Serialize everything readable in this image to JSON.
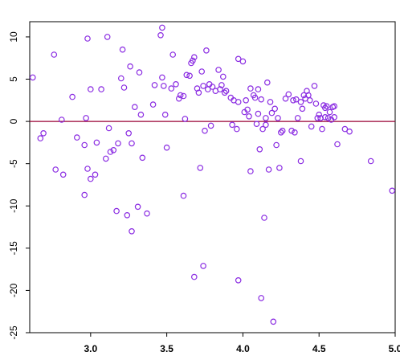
{
  "chart_data": {
    "type": "scatter",
    "title": "",
    "xlabel": "",
    "ylabel": "",
    "xlim": [
      2.6,
      5.0
    ],
    "ylim": [
      -25,
      11.8
    ],
    "x_ticks": [
      3.0,
      3.5,
      4.0,
      4.5,
      5.0
    ],
    "x_tick_labels": [
      "3.0",
      "3.5",
      "4.0",
      "4.5",
      "5.0"
    ],
    "y_ticks": [
      10,
      5,
      0,
      -5,
      -10,
      -15,
      -20,
      -25
    ],
    "y_tick_labels": [
      "10",
      "5",
      "0",
      "-5",
      "-10",
      "-15",
      "-20",
      "-25"
    ],
    "reference_line": {
      "y": 0,
      "color": "#990033"
    },
    "point_color": "#8a2be2",
    "grid": false,
    "legend": "none",
    "series": [
      {
        "points": [
          [
            2.62,
            5.2
          ],
          [
            2.67,
            -2.0
          ],
          [
            2.69,
            -1.4
          ],
          [
            2.76,
            7.9
          ],
          [
            2.77,
            -5.7
          ],
          [
            2.81,
            0.2
          ],
          [
            2.82,
            -6.3
          ],
          [
            2.88,
            2.9
          ],
          [
            2.91,
            -1.9
          ],
          [
            2.96,
            -2.8
          ],
          [
            2.96,
            -8.7
          ],
          [
            2.97,
            0.4
          ],
          [
            2.98,
            9.8
          ],
          [
            2.98,
            -5.6
          ],
          [
            3.0,
            3.8
          ],
          [
            3.0,
            -6.8
          ],
          [
            3.03,
            -6.3
          ],
          [
            3.04,
            -2.5
          ],
          [
            3.07,
            3.8
          ],
          [
            3.1,
            -4.4
          ],
          [
            3.11,
            10.0
          ],
          [
            3.12,
            -0.8
          ],
          [
            3.13,
            -3.6
          ],
          [
            3.15,
            -3.4
          ],
          [
            3.17,
            -10.6
          ],
          [
            3.18,
            -2.6
          ],
          [
            3.2,
            5.1
          ],
          [
            3.21,
            8.5
          ],
          [
            3.22,
            4.0
          ],
          [
            3.24,
            -11.1
          ],
          [
            3.25,
            -1.4
          ],
          [
            3.26,
            6.5
          ],
          [
            3.27,
            -2.6
          ],
          [
            3.27,
            -13.0
          ],
          [
            3.29,
            1.7
          ],
          [
            3.31,
            -10.1
          ],
          [
            3.32,
            5.8
          ],
          [
            3.33,
            0.8
          ],
          [
            3.34,
            -4.3
          ],
          [
            3.37,
            -10.9
          ],
          [
            3.41,
            2.0
          ],
          [
            3.42,
            4.3
          ],
          [
            3.46,
            10.2
          ],
          [
            3.47,
            11.1
          ],
          [
            3.47,
            5.2
          ],
          [
            3.48,
            4.2
          ],
          [
            3.49,
            0.8
          ],
          [
            3.5,
            -3.1
          ],
          [
            3.53,
            3.9
          ],
          [
            3.54,
            7.9
          ],
          [
            3.56,
            4.4
          ],
          [
            3.58,
            2.7
          ],
          [
            3.59,
            3.1
          ],
          [
            3.61,
            3.0
          ],
          [
            3.61,
            -8.8
          ],
          [
            3.62,
            0.3
          ],
          [
            3.63,
            5.5
          ],
          [
            3.65,
            5.4
          ],
          [
            3.66,
            6.9
          ],
          [
            3.67,
            7.2
          ],
          [
            3.68,
            -18.4
          ],
          [
            3.68,
            7.6
          ],
          [
            3.7,
            3.9
          ],
          [
            3.71,
            3.4
          ],
          [
            3.72,
            -5.5
          ],
          [
            3.73,
            5.9
          ],
          [
            3.74,
            -17.1
          ],
          [
            3.74,
            4.2
          ],
          [
            3.75,
            -1.1
          ],
          [
            3.76,
            8.4
          ],
          [
            3.77,
            3.8
          ],
          [
            3.78,
            4.4
          ],
          [
            3.79,
            -0.5
          ],
          [
            3.8,
            4.1
          ],
          [
            3.82,
            3.6
          ],
          [
            3.84,
            6.1
          ],
          [
            3.85,
            3.8
          ],
          [
            3.86,
            4.3
          ],
          [
            3.87,
            5.3
          ],
          [
            3.88,
            3.4
          ],
          [
            3.89,
            3.6
          ],
          [
            3.92,
            2.8
          ],
          [
            3.93,
            -0.4
          ],
          [
            3.94,
            2.5
          ],
          [
            3.96,
            -0.9
          ],
          [
            3.97,
            2.3
          ],
          [
            3.97,
            7.4
          ],
          [
            3.97,
            -18.8
          ],
          [
            4.0,
            7.1
          ],
          [
            4.01,
            1.1
          ],
          [
            4.02,
            2.5
          ],
          [
            4.03,
            1.4
          ],
          [
            4.04,
            0.6
          ],
          [
            4.05,
            3.9
          ],
          [
            4.05,
            -5.9
          ],
          [
            4.07,
            3.1
          ],
          [
            4.08,
            2.8
          ],
          [
            4.09,
            -0.3
          ],
          [
            4.1,
            3.8
          ],
          [
            4.1,
            0.9
          ],
          [
            4.11,
            -3.3
          ],
          [
            4.12,
            2.6
          ],
          [
            4.12,
            -20.9
          ],
          [
            4.13,
            -0.9
          ],
          [
            4.14,
            -11.4
          ],
          [
            4.15,
            -0.4
          ],
          [
            4.15,
            0.4
          ],
          [
            4.16,
            4.6
          ],
          [
            4.17,
            -5.7
          ],
          [
            4.18,
            2.3
          ],
          [
            4.19,
            1.0
          ],
          [
            4.2,
            -23.7
          ],
          [
            4.21,
            1.5
          ],
          [
            4.22,
            -2.8
          ],
          [
            4.23,
            0.4
          ],
          [
            4.24,
            -5.5
          ],
          [
            4.25,
            -1.3
          ],
          [
            4.26,
            -1.1
          ],
          [
            4.28,
            2.7
          ],
          [
            4.3,
            3.2
          ],
          [
            4.32,
            -1.1
          ],
          [
            4.33,
            2.5
          ],
          [
            4.34,
            -1.3
          ],
          [
            4.35,
            2.6
          ],
          [
            4.36,
            0.4
          ],
          [
            4.38,
            2.3
          ],
          [
            4.38,
            -4.7
          ],
          [
            4.39,
            1.5
          ],
          [
            4.4,
            3.1
          ],
          [
            4.41,
            2.7
          ],
          [
            4.42,
            3.6
          ],
          [
            4.43,
            3.1
          ],
          [
            4.44,
            2.5
          ],
          [
            4.45,
            -0.6
          ],
          [
            4.47,
            4.2
          ],
          [
            4.48,
            2.1
          ],
          [
            4.49,
            0.4
          ],
          [
            4.5,
            0.8
          ],
          [
            4.51,
            0.4
          ],
          [
            4.52,
            -0.9
          ],
          [
            4.53,
            1.9
          ],
          [
            4.54,
            1.6
          ],
          [
            4.54,
            0.5
          ],
          [
            4.55,
            1.8
          ],
          [
            4.56,
            0.4
          ],
          [
            4.57,
            1.1
          ],
          [
            4.58,
            0.2
          ],
          [
            4.59,
            1.7
          ],
          [
            4.6,
            1.8
          ],
          [
            4.6,
            0.5
          ],
          [
            4.62,
            -2.7
          ],
          [
            4.67,
            -0.9
          ],
          [
            4.7,
            -1.2
          ],
          [
            4.84,
            -4.7
          ],
          [
            4.98,
            -8.2
          ]
        ]
      }
    ]
  }
}
